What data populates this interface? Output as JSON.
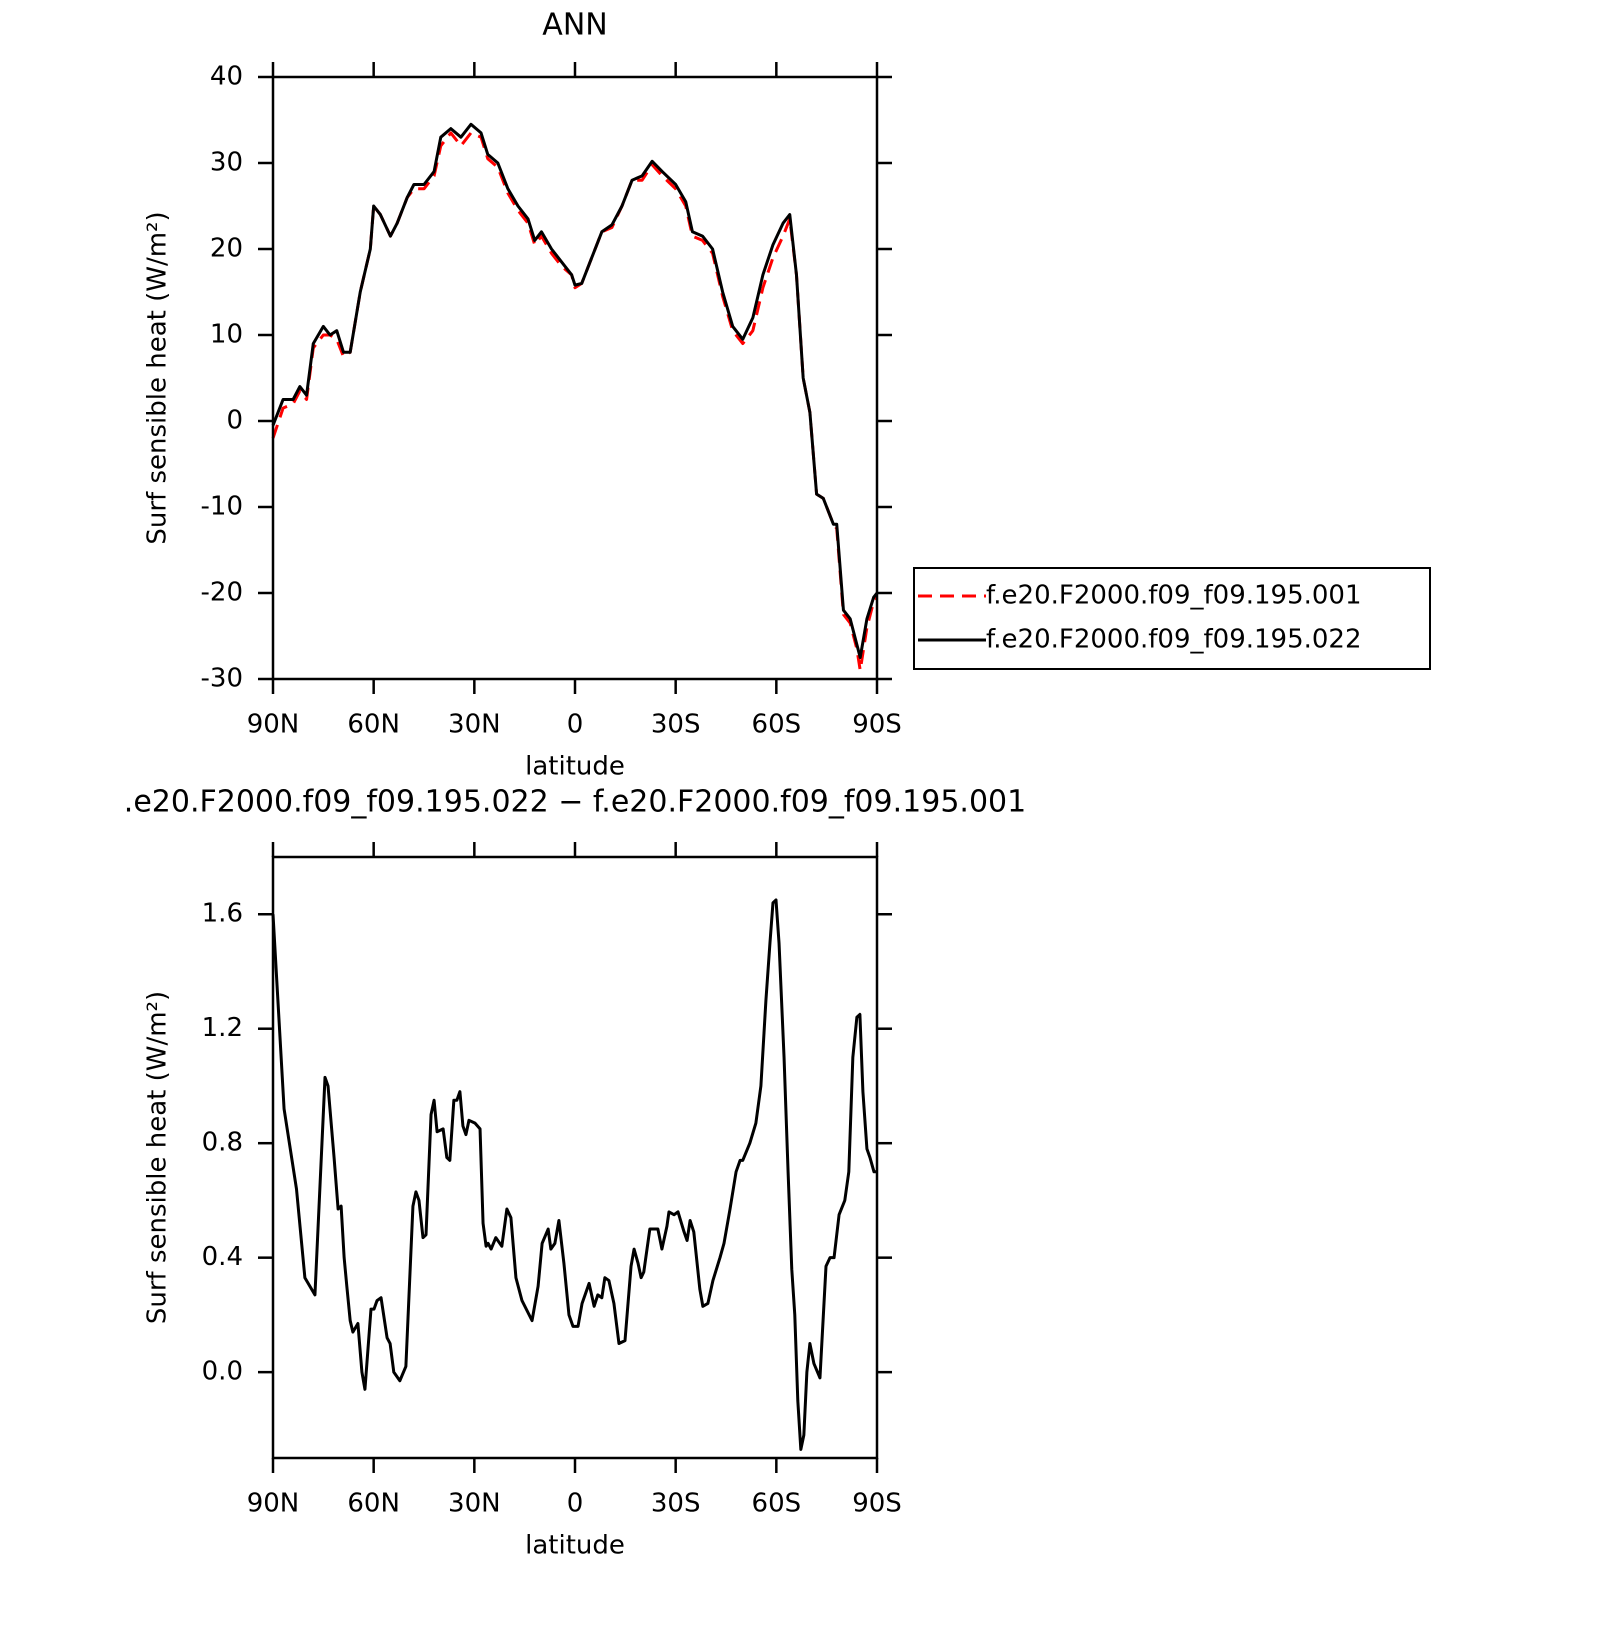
{
  "chart_data": [
    {
      "type": "line",
      "title": "ANN",
      "xlabel": "latitude",
      "ylabel": "Surf sensible heat (W/m²)",
      "x": [
        90,
        87,
        84,
        82,
        80,
        78,
        75,
        73,
        71,
        69,
        67,
        64,
        61,
        60,
        58,
        55,
        53,
        50,
        48,
        45,
        42,
        40,
        37,
        34,
        31,
        28,
        26,
        23,
        20,
        17,
        14,
        12,
        10,
        7,
        4,
        1,
        0,
        -2,
        -5,
        -8,
        -11,
        -14,
        -17,
        -20,
        -23,
        -26,
        -30,
        -33,
        -35,
        -38,
        -41,
        -44,
        -47,
        -50,
        -53,
        -56,
        -59,
        -62,
        -64,
        -66,
        -68,
        -70,
        -72,
        -74,
        -77,
        -78,
        -80,
        -82,
        -84,
        -85,
        -87,
        -89,
        -90
      ],
      "series": [
        {
          "name": "f.e20.F2000.f09_f09.195.001",
          "color": "#ff0000",
          "line_style": "dashed",
          "values": [
            -2,
            1.5,
            2,
            3.5,
            2.5,
            8.5,
            10,
            10,
            9.5,
            7.5,
            8,
            15,
            20,
            25,
            24,
            21.5,
            23,
            26,
            27,
            27,
            28.5,
            32,
            33.5,
            32,
            33.5,
            33,
            30.5,
            29.5,
            26.5,
            24.5,
            23,
            20.5,
            21.5,
            19.5,
            18,
            17,
            15.5,
            16,
            19,
            22,
            22.5,
            25,
            28,
            28,
            29.8,
            28.5,
            27,
            25,
            21.5,
            21,
            19.5,
            14.5,
            10.5,
            9,
            10.5,
            15.5,
            19,
            21.5,
            23.5,
            17,
            5,
            1,
            -8.5,
            -9,
            -12,
            -12.5,
            -22.5,
            -23.5,
            -26.5,
            -29,
            -24,
            -21,
            -20.5
          ]
        },
        {
          "name": "f.e20.F2000.f09_f09.195.022",
          "color": "#000000",
          "line_style": "solid",
          "values": [
            -0.5,
            2.5,
            2.5,
            4,
            3,
            9,
            11,
            10,
            10.5,
            8,
            8,
            15,
            20,
            25,
            24,
            21.5,
            23,
            26,
            27.5,
            27.5,
            29,
            33,
            34,
            33,
            34.5,
            33.5,
            31,
            30,
            27,
            25,
            23.5,
            21,
            22,
            20,
            18.5,
            17,
            15.8,
            16,
            19,
            22,
            22.8,
            25,
            28,
            28.5,
            30.2,
            29,
            27.5,
            25.5,
            22,
            21.5,
            20,
            15,
            11,
            9.5,
            12,
            17,
            20.5,
            23,
            24,
            17,
            5,
            1,
            -8.5,
            -9,
            -12,
            -12,
            -22,
            -23,
            -26,
            -27.5,
            -23,
            -20.5,
            -20
          ]
        }
      ],
      "xlim": [
        90,
        -90
      ],
      "xticks": [
        {
          "value": 90,
          "label": "90N"
        },
        {
          "value": 60,
          "label": "60N"
        },
        {
          "value": 30,
          "label": "30N"
        },
        0,
        {
          "value": -30,
          "label": "30S"
        },
        {
          "value": -60,
          "label": "60S"
        },
        {
          "value": -90,
          "label": "90S"
        }
      ],
      "ylim": [
        -30,
        40
      ],
      "yticks": [
        -30,
        -20,
        -10,
        0,
        10,
        20,
        30,
        40
      ],
      "legend": "right"
    },
    {
      "type": "line",
      "title": ".e20.F2000.f09_f09.195.022 − f.e20.F2000.f09_f09.195.001",
      "xlabel": "latitude",
      "ylabel": "Surf sensible heat (W/m²)",
      "x": [
        90,
        86.7,
        83,
        80.5,
        77.5,
        74.5,
        73.6,
        71.8,
        70.6,
        69.7,
        68.8,
        68,
        67,
        66.2,
        64.7,
        63.5,
        62.6,
        60.8,
        59.9,
        59,
        57.8,
        56,
        55.1,
        54,
        52.2,
        50.4,
        48.3,
        47.4,
        46.5,
        45.3,
        44.4,
        42.9,
        42,
        41.1,
        39.3,
        38.2,
        37.3,
        36.1,
        35.2,
        34.3,
        33.4,
        32.5,
        31.6,
        29.8,
        28.3,
        27.4,
        26.5,
        25.9,
        25,
        23.6,
        21.8,
        20.3,
        19.1,
        17.6,
        15.8,
        12.8,
        11,
        9.8,
        8,
        7.2,
        6,
        4.8,
        3.3,
        1.8,
        0.6,
        -0.9,
        -2.1,
        -4.2,
        -5.7,
        -6.8,
        -8,
        -8.9,
        -10.1,
        -11.6,
        -13.1,
        -14.9,
        -16.7,
        -17.6,
        -18.8,
        -19.7,
        -20.5,
        -22.3,
        -24.7,
        -25.9,
        -27.4,
        -28,
        -29.5,
        -30.7,
        -32.5,
        -33.4,
        -34.3,
        -35.4,
        -37.2,
        -38.1,
        -39.6,
        -41.1,
        -43.2,
        -44.4,
        -46.2,
        -48,
        -49.2,
        -50,
        -52.1,
        -53.9,
        -55.4,
        -56.9,
        -58.1,
        -59,
        -59.9,
        -60.8,
        -62.3,
        -63.5,
        -64.6,
        -65.5,
        -66.4,
        -67.3,
        -68.2,
        -69.1,
        -70,
        -71.2,
        -73,
        -74.8,
        -76,
        -77.2,
        -78.7,
        -80.4,
        -81.6,
        -82.8,
        -84,
        -84.9,
        -85.8,
        -87,
        -87.9,
        -89.1,
        -90
      ],
      "series": [
        {
          "color": "#000000",
          "line_style": "solid",
          "values": [
            1.6,
            0.92,
            0.64,
            0.33,
            0.27,
            1.03,
            1.0,
            0.75,
            0.57,
            0.58,
            0.4,
            0.3,
            0.18,
            0.14,
            0.17,
            0.0,
            -0.06,
            0.22,
            0.22,
            0.25,
            0.26,
            0.12,
            0.1,
            0.0,
            -0.03,
            0.02,
            0.58,
            0.63,
            0.6,
            0.47,
            0.48,
            0.9,
            0.95,
            0.84,
            0.85,
            0.75,
            0.74,
            0.95,
            0.95,
            0.98,
            0.86,
            0.83,
            0.88,
            0.87,
            0.85,
            0.52,
            0.44,
            0.45,
            0.43,
            0.47,
            0.44,
            0.57,
            0.54,
            0.33,
            0.25,
            0.18,
            0.3,
            0.45,
            0.5,
            0.43,
            0.45,
            0.53,
            0.38,
            0.2,
            0.16,
            0.16,
            0.24,
            0.31,
            0.23,
            0.27,
            0.26,
            0.33,
            0.32,
            0.24,
            0.1,
            0.11,
            0.37,
            0.43,
            0.38,
            0.33,
            0.35,
            0.5,
            0.5,
            0.43,
            0.51,
            0.56,
            0.55,
            0.56,
            0.49,
            0.46,
            0.53,
            0.49,
            0.29,
            0.23,
            0.24,
            0.32,
            0.4,
            0.45,
            0.57,
            0.7,
            0.74,
            0.74,
            0.8,
            0.87,
            1.0,
            1.3,
            1.5,
            1.64,
            1.65,
            1.5,
            1.1,
            0.7,
            0.36,
            0.2,
            -0.1,
            -0.27,
            -0.22,
            0.0,
            0.1,
            0.03,
            -0.02,
            0.37,
            0.4,
            0.4,
            0.55,
            0.6,
            0.7,
            1.1,
            1.24,
            1.25,
            0.98,
            0.78,
            0.75,
            0.7,
            0.7
          ]
        }
      ],
      "xlim": [
        90,
        -90
      ],
      "xticks": [
        {
          "value": 90,
          "label": "90N"
        },
        {
          "value": 60,
          "label": "60N"
        },
        {
          "value": 30,
          "label": "30N"
        },
        0,
        {
          "value": -30,
          "label": "30S"
        },
        {
          "value": -60,
          "label": "60S"
        },
        {
          "value": -90,
          "label": "90S"
        }
      ],
      "ylim": [
        -0.3,
        1.8
      ],
      "yticks": [
        {
          "value": 0,
          "label": "0.0"
        },
        0.4,
        0.8,
        1.2,
        1.6
      ]
    }
  ]
}
